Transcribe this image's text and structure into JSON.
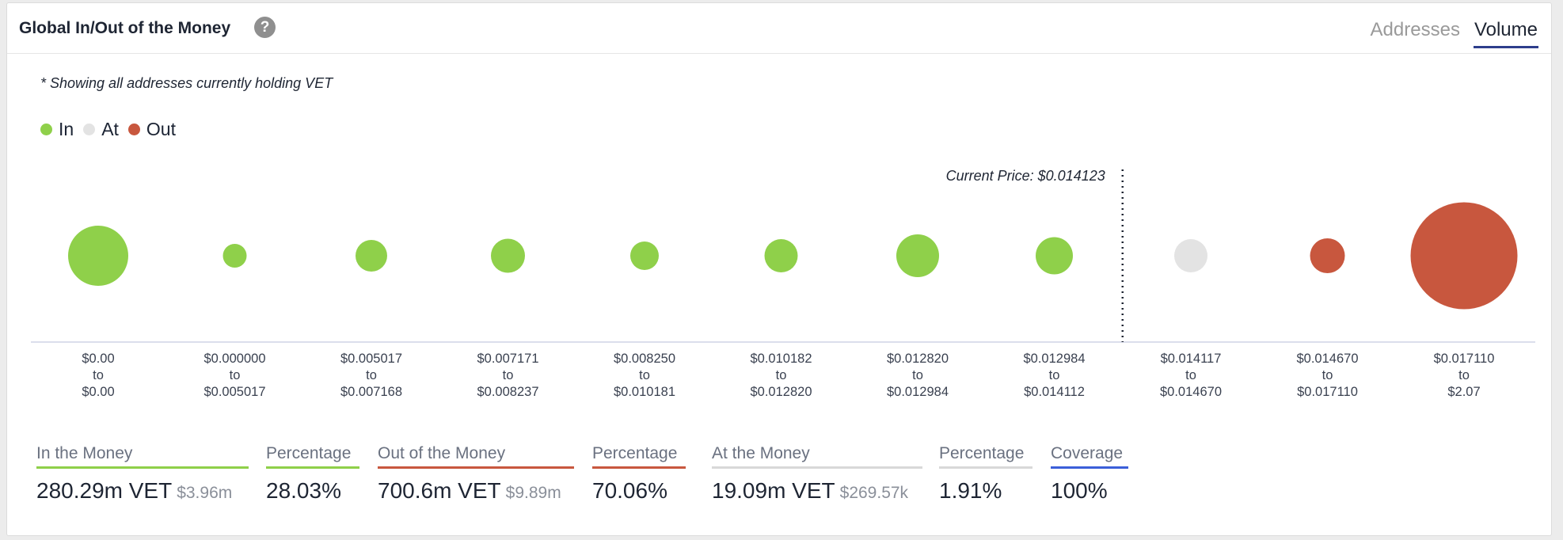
{
  "header": {
    "title": "Global In/Out of the Money",
    "help_icon": "question-circle-icon",
    "tabs": [
      {
        "label": "Addresses",
        "active": false
      },
      {
        "label": "Volume",
        "active": true
      }
    ]
  },
  "note": "* Showing all addresses currently holding VET",
  "legend": [
    {
      "label": "In",
      "color": "#8fd04a"
    },
    {
      "label": "At",
      "color": "#e3e3e3"
    },
    {
      "label": "Out",
      "color": "#c8573e"
    }
  ],
  "chart_data": {
    "type": "scatter",
    "current_price_label": "Current Price: $0.014123",
    "colors": {
      "In": "#8fd04a",
      "At": "#e3e3e3",
      "Out": "#c8573e"
    },
    "points": [
      {
        "range": [
          "$0.00",
          "to",
          "$0.00"
        ],
        "status": "In",
        "size": 76
      },
      {
        "range": [
          "$0.000000",
          "to",
          "$0.005017"
        ],
        "status": "In",
        "size": 30
      },
      {
        "range": [
          "$0.005017",
          "to",
          "$0.007168"
        ],
        "status": "In",
        "size": 40
      },
      {
        "range": [
          "$0.007171",
          "to",
          "$0.008237"
        ],
        "status": "In",
        "size": 43
      },
      {
        "range": [
          "$0.008250",
          "to",
          "$0.010181"
        ],
        "status": "In",
        "size": 36
      },
      {
        "range": [
          "$0.010182",
          "to",
          "$0.012820"
        ],
        "status": "In",
        "size": 42
      },
      {
        "range": [
          "$0.012820",
          "to",
          "$0.012984"
        ],
        "status": "In",
        "size": 54
      },
      {
        "range": [
          "$0.012984",
          "to",
          "$0.014112"
        ],
        "status": "In",
        "size": 47
      },
      {
        "range": [
          "$0.014117",
          "to",
          "$0.014670"
        ],
        "status": "At",
        "size": 42
      },
      {
        "range": [
          "$0.014670",
          "to",
          "$0.017110"
        ],
        "status": "Out",
        "size": 44
      },
      {
        "range": [
          "$0.017110",
          "to",
          "$2.07"
        ],
        "status": "Out",
        "size": 135
      }
    ],
    "current_price_after_index": 7
  },
  "stats": [
    {
      "label": "In the Money",
      "value": "280.29m VET",
      "sub": "$3.96m",
      "color": "#8fd04a"
    },
    {
      "label": "Percentage",
      "value": "28.03%",
      "sub": "",
      "color": "#8fd04a"
    },
    {
      "label": "Out of the Money",
      "value": "700.6m VET",
      "sub": "$9.89m",
      "color": "#c8573e"
    },
    {
      "label": "Percentage",
      "value": "70.06%",
      "sub": "",
      "color": "#c8573e"
    },
    {
      "label": "At the Money",
      "value": "19.09m VET",
      "sub": "$269.57k",
      "color": "#d8d8d8"
    },
    {
      "label": "Percentage",
      "value": "1.91%",
      "sub": "",
      "color": "#d8d8d8"
    },
    {
      "label": "Coverage",
      "value": "100%",
      "sub": "",
      "color": "#3b5fd9"
    }
  ]
}
